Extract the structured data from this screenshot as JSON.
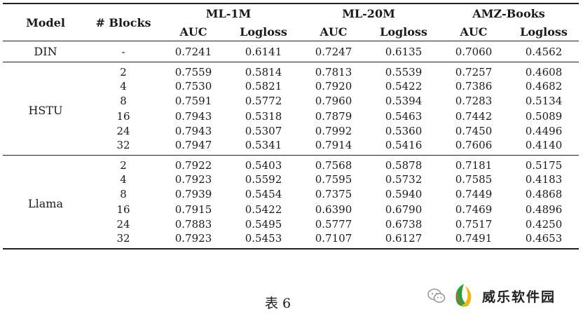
{
  "table": {
    "header": {
      "model": "Model",
      "blocks": "# Blocks",
      "datasets": [
        "ML-1M",
        "ML-20M",
        "AMZ-Books"
      ],
      "metrics": [
        "AUC",
        "Logloss",
        "AUC",
        "Logloss",
        "AUC",
        "Logloss"
      ]
    },
    "groups": [
      {
        "model": "DIN",
        "rows": [
          [
            "-",
            "0.7241",
            "0.6141",
            "0.7247",
            "0.6135",
            "0.7060",
            "0.4562"
          ]
        ]
      },
      {
        "model": "HSTU",
        "rows": [
          [
            "2",
            "0.7559",
            "0.5814",
            "0.7813",
            "0.5539",
            "0.7257",
            "0.4608"
          ],
          [
            "4",
            "0.7530",
            "0.5821",
            "0.7920",
            "0.5422",
            "0.7386",
            "0.4682"
          ],
          [
            "8",
            "0.7591",
            "0.5772",
            "0.7960",
            "0.5394",
            "0.7283",
            "0.5134"
          ],
          [
            "16",
            "0.7943",
            "0.5318",
            "0.7879",
            "0.5463",
            "0.7442",
            "0.5089"
          ],
          [
            "24",
            "0.7943",
            "0.5307",
            "0.7992",
            "0.5360",
            "0.7450",
            "0.4496"
          ],
          [
            "32",
            "0.7947",
            "0.5341",
            "0.7914",
            "0.5416",
            "0.7606",
            "0.4140"
          ]
        ]
      },
      {
        "model": "Llama",
        "rows": [
          [
            "2",
            "0.7922",
            "0.5403",
            "0.7568",
            "0.5878",
            "0.7181",
            "0.5175"
          ],
          [
            "4",
            "0.7923",
            "0.5592",
            "0.7595",
            "0.5732",
            "0.7585",
            "0.4183"
          ],
          [
            "8",
            "0.7939",
            "0.5454",
            "0.7375",
            "0.5940",
            "0.7449",
            "0.4868"
          ],
          [
            "16",
            "0.7915",
            "0.5422",
            "0.6390",
            "0.6790",
            "0.7469",
            "0.4896"
          ],
          [
            "24",
            "0.7883",
            "0.5495",
            "0.5777",
            "0.6738",
            "0.7517",
            "0.4250"
          ],
          [
            "32",
            "0.7923",
            "0.5453",
            "0.7107",
            "0.6127",
            "0.7491",
            "0.4653"
          ]
        ]
      }
    ]
  },
  "caption": "表 6",
  "watermark": {
    "text": "威乐软件园",
    "icon": "wechat-icon",
    "logo": "brand-logo"
  }
}
